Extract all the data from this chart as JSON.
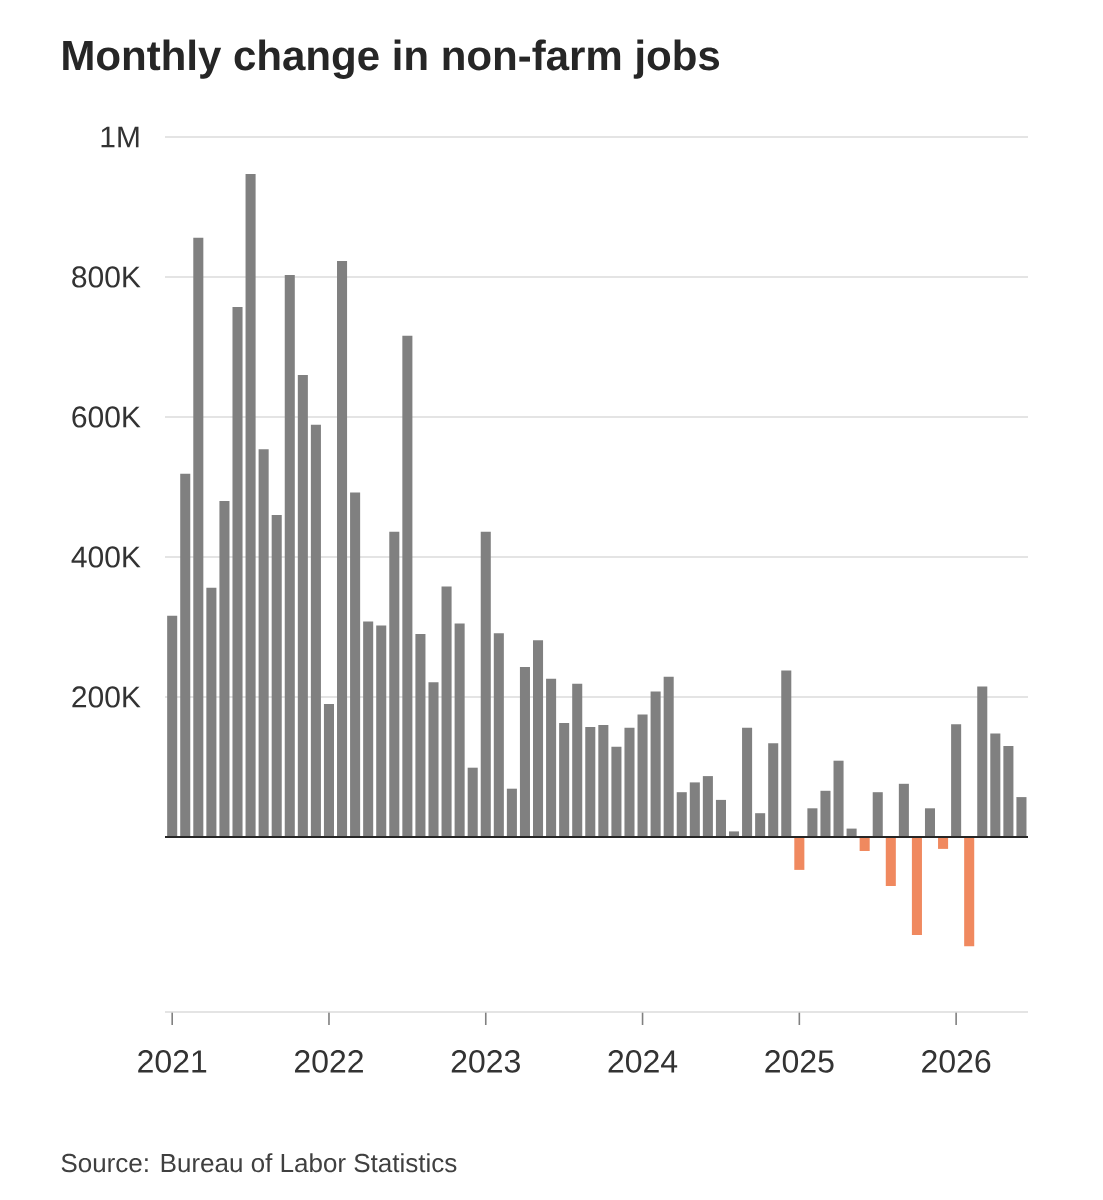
{
  "chart_data": {
    "type": "bar",
    "title": "Monthly change in non-farm jobs",
    "annotations": [
      "Source: Bureau of Labor Statistics"
    ],
    "categories": [
      "2021",
      null,
      null,
      null,
      null,
      null,
      null,
      null,
      null,
      null,
      null,
      null,
      "2022",
      null,
      null,
      null,
      null,
      null,
      null,
      null,
      null,
      null,
      null,
      null,
      "2023",
      null,
      null,
      null,
      null,
      null,
      null,
      null,
      null,
      null,
      null,
      null,
      "2024",
      null,
      null,
      null,
      null,
      null,
      null,
      null,
      null,
      null,
      null,
      null,
      "2025",
      null,
      null,
      null,
      null,
      null,
      null,
      null,
      null,
      null,
      null,
      null,
      "2026",
      null,
      null,
      null,
      null,
      null
    ],
    "values": [
      316000,
      519000,
      856000,
      356000,
      480000,
      757000,
      947000,
      554000,
      460000,
      803000,
      660000,
      589000,
      190000,
      823000,
      492000,
      308000,
      302000,
      436000,
      716000,
      290000,
      221000,
      358000,
      305000,
      99000,
      436000,
      291000,
      69000,
      243000,
      281000,
      226000,
      163000,
      219000,
      157000,
      160000,
      129000,
      156000,
      175000,
      208000,
      229000,
      64000,
      78000,
      87000,
      53000,
      8000,
      156000,
      34000,
      134000,
      238000,
      -47000,
      41000,
      66000,
      109000,
      12000,
      -20000,
      64000,
      -70000,
      76000,
      -140000,
      41000,
      -17000,
      161000,
      -156000,
      215000,
      148000,
      130000,
      57000
    ],
    "colors": [
      "#808080",
      "#808080",
      "#808080",
      "#808080",
      "#808080",
      "#808080",
      "#808080",
      "#808080",
      "#808080",
      "#808080",
      "#808080",
      "#808080",
      "#808080",
      "#808080",
      "#808080",
      "#808080",
      "#808080",
      "#808080",
      "#808080",
      "#808080",
      "#808080",
      "#808080",
      "#808080",
      "#808080",
      "#808080",
      "#808080",
      "#808080",
      "#808080",
      "#808080",
      "#808080",
      "#808080",
      "#808080",
      "#808080",
      "#808080",
      "#808080",
      "#808080",
      "#808080",
      "#808080",
      "#808080",
      "#808080",
      "#808080",
      "#808080",
      "#808080",
      "#808080",
      "#808080",
      "#808080",
      "#808080",
      "#808080",
      "#f0895f",
      "#808080",
      "#808080",
      "#808080",
      "#808080",
      "#f0895f",
      "#808080",
      "#f0895f",
      "#808080",
      "#f0895f",
      "#808080",
      "#f0895f",
      "#808080",
      "#f0895f",
      "#808080",
      "#808080",
      "#808080",
      "#808080"
    ],
    "ylim": [
      -250000,
      1000000
    ],
    "yticks": [
      {
        "value": 200000,
        "label": "200K"
      },
      {
        "value": 400000,
        "label": "400K"
      },
      {
        "value": 600000,
        "label": "600K"
      },
      {
        "value": 800000,
        "label": "800K"
      },
      {
        "value": 1000000,
        "label": "1M"
      }
    ],
    "grid": "y"
  }
}
